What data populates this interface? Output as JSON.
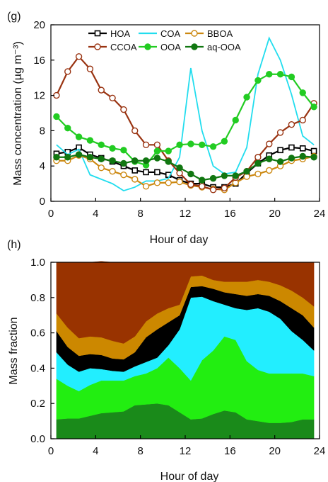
{
  "chart_data": [
    {
      "panel_label": "(g)",
      "type": "line",
      "xlabel": "Hour of day",
      "ylabel": "Mass concentration (µg m⁻³)",
      "xlim": [
        0,
        24
      ],
      "ylim": [
        0,
        20
      ],
      "xticks": [
        0,
        4,
        8,
        12,
        16,
        20,
        24
      ],
      "yticks": [
        0,
        4,
        8,
        12,
        16,
        20
      ],
      "grid": false,
      "legend": "top",
      "x": [
        0.5,
        1.5,
        2.5,
        3.5,
        4.5,
        5.5,
        6.5,
        7.5,
        8.5,
        9.5,
        10.5,
        11.5,
        12.5,
        13.5,
        14.5,
        15.5,
        16.5,
        17.5,
        18.5,
        19.5,
        20.5,
        21.5,
        22.5,
        23.5
      ],
      "series": [
        {
          "name": "HOA",
          "color": "#000000",
          "marker": "square",
          "fill": "#ffffff",
          "values": [
            5.4,
            5.6,
            6.1,
            5.3,
            4.9,
            4.5,
            4.0,
            3.5,
            3.3,
            3.3,
            3.0,
            2.4,
            2.0,
            2.0,
            1.6,
            1.6,
            2.0,
            3.2,
            4.3,
            5.2,
            5.8,
            6.1,
            6.0,
            5.7
          ]
        },
        {
          "name": "COA",
          "color": "#22ddee",
          "marker": "none",
          "fill": "none",
          "values": [
            6.4,
            5.3,
            5.9,
            3.0,
            2.5,
            2.0,
            1.2,
            1.6,
            2.3,
            2.3,
            2.6,
            5.0,
            15.1,
            8.0,
            4.0,
            3.1,
            3.3,
            6.1,
            14.4,
            18.5,
            16.0,
            12.1,
            7.4,
            6.4
          ]
        },
        {
          "name": "BBOA",
          "color": "#cc8811",
          "marker": "circle",
          "fill": "#ffffff",
          "values": [
            4.6,
            4.6,
            5.2,
            4.8,
            3.8,
            3.4,
            3.0,
            2.5,
            1.7,
            2.1,
            2.1,
            2.2,
            1.8,
            1.6,
            1.4,
            1.3,
            2.1,
            2.8,
            3.1,
            3.5,
            4.0,
            4.6,
            4.8,
            5.1
          ]
        },
        {
          "name": "CCOA",
          "color": "#993311",
          "marker": "circle",
          "fill": "#ffffff",
          "values": [
            12.0,
            14.7,
            16.4,
            15.0,
            12.6,
            11.7,
            10.4,
            8.0,
            6.4,
            6.4,
            4.6,
            3.2,
            1.9,
            1.7,
            1.3,
            1.5,
            2.7,
            3.4,
            5.0,
            6.5,
            7.8,
            8.7,
            9.2,
            11.1
          ]
        },
        {
          "name": "OOA",
          "color": "#22cc22",
          "marker": "circle",
          "fill": "#22cc22",
          "values": [
            9.6,
            8.3,
            7.3,
            6.9,
            6.4,
            6.0,
            5.8,
            4.5,
            4.1,
            5.7,
            5.7,
            6.4,
            6.5,
            6.4,
            6.2,
            6.8,
            9.2,
            11.8,
            13.7,
            14.4,
            14.4,
            14.1,
            12.3,
            10.7
          ]
        },
        {
          "name": "aq-OOA",
          "color": "#117711",
          "marker": "circle",
          "fill": "#117711",
          "values": [
            5.0,
            5.0,
            5.3,
            5.0,
            4.8,
            4.6,
            4.3,
            4.6,
            4.6,
            4.9,
            4.5,
            3.8,
            3.1,
            2.4,
            2.6,
            2.9,
            2.9,
            3.4,
            4.3,
            4.8,
            4.5,
            4.9,
            5.1,
            5.0
          ]
        }
      ]
    },
    {
      "panel_label": "(h)",
      "type": "area",
      "stacked": true,
      "xlabel": "Hour of day",
      "ylabel": "Mass fraction",
      "xlim": [
        0,
        24
      ],
      "ylim": [
        0,
        1.0
      ],
      "xticks": [
        0,
        4,
        8,
        12,
        16,
        20,
        24
      ],
      "yticks": [
        "0.0",
        "0.2",
        "0.4",
        "0.6",
        "0.8",
        "1.0"
      ],
      "grid": false,
      "x": [
        0.5,
        1.5,
        2.5,
        3.5,
        4.5,
        5.5,
        6.5,
        7.5,
        8.5,
        9.5,
        10.5,
        11.5,
        12.5,
        13.5,
        14.5,
        15.5,
        16.5,
        17.5,
        18.5,
        19.5,
        20.5,
        21.5,
        22.5,
        23.5
      ],
      "series": [
        {
          "name": "aq-OOA",
          "color": "#1a8a1a",
          "values": [
            0.11,
            0.115,
            0.115,
            0.13,
            0.145,
            0.15,
            0.155,
            0.19,
            0.195,
            0.2,
            0.19,
            0.15,
            0.11,
            0.115,
            0.14,
            0.16,
            0.15,
            0.11,
            0.1,
            0.09,
            0.09,
            0.095,
            0.11,
            0.11
          ]
        },
        {
          "name": "OOA",
          "color": "#22ee11",
          "values": [
            0.23,
            0.185,
            0.155,
            0.175,
            0.185,
            0.18,
            0.175,
            0.165,
            0.175,
            0.2,
            0.27,
            0.25,
            0.22,
            0.33,
            0.36,
            0.42,
            0.41,
            0.33,
            0.29,
            0.28,
            0.28,
            0.275,
            0.26,
            0.245
          ]
        },
        {
          "name": "COA",
          "color": "#22eeff",
          "values": [
            0.15,
            0.12,
            0.11,
            0.095,
            0.065,
            0.055,
            0.05,
            0.055,
            0.065,
            0.06,
            0.07,
            0.22,
            0.47,
            0.36,
            0.28,
            0.18,
            0.18,
            0.29,
            0.35,
            0.35,
            0.31,
            0.24,
            0.19,
            0.145
          ]
        },
        {
          "name": "HOA",
          "color": "#000000",
          "values": [
            0.12,
            0.1,
            0.09,
            0.08,
            0.08,
            0.07,
            0.07,
            0.08,
            0.14,
            0.16,
            0.13,
            0.08,
            0.06,
            0.06,
            0.07,
            0.07,
            0.08,
            0.08,
            0.08,
            0.09,
            0.1,
            0.13,
            0.14,
            0.13
          ]
        },
        {
          "name": "BBOA",
          "color": "#cc8800",
          "values": [
            0.1,
            0.11,
            0.1,
            0.1,
            0.1,
            0.1,
            0.09,
            0.09,
            0.09,
            0.09,
            0.08,
            0.06,
            0.06,
            0.06,
            0.05,
            0.06,
            0.07,
            0.08,
            0.08,
            0.08,
            0.09,
            0.1,
            0.1,
            0.12
          ]
        },
        {
          "name": "CCOA",
          "color": "#993300",
          "values": [
            0.29,
            0.37,
            0.43,
            0.42,
            0.43,
            0.445,
            0.46,
            0.42,
            0.335,
            0.29,
            0.26,
            0.24,
            0.08,
            0.075,
            0.1,
            0.11,
            0.11,
            0.11,
            0.1,
            0.11,
            0.13,
            0.16,
            0.2,
            0.25
          ]
        }
      ]
    }
  ]
}
